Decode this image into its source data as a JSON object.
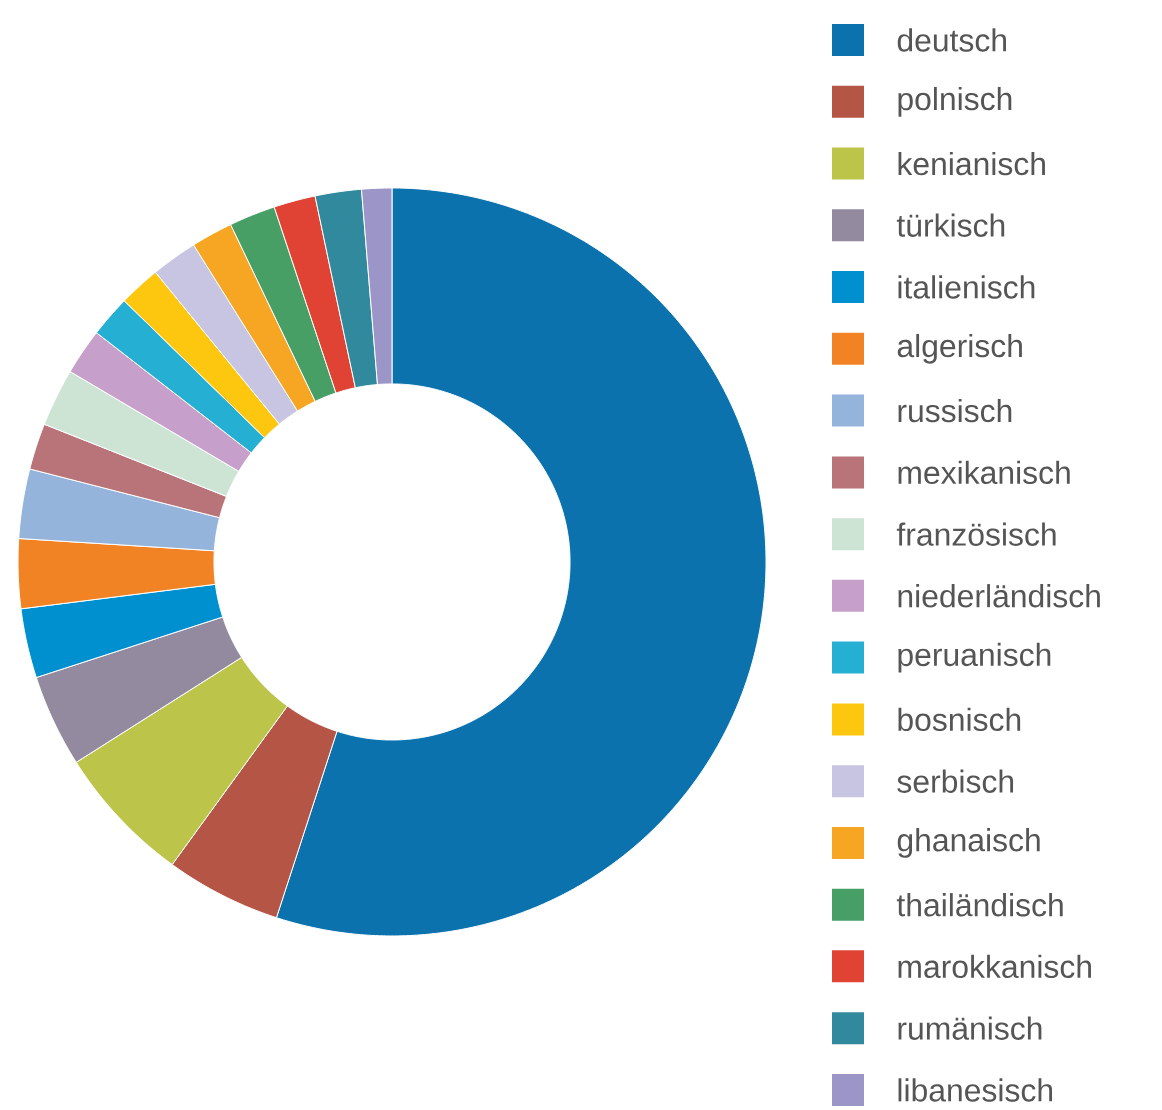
{
  "chart_data": {
    "type": "donut",
    "legend": "right",
    "categories": [
      "deutsch",
      "polnisch",
      "kenianisch",
      "türkisch",
      "italienisch",
      "algerisch",
      "russisch",
      "mexikanisch",
      "französisch",
      "niederländisch",
      "peruanisch",
      "bosnisch",
      "serbisch",
      "ghanaisch",
      "thailändisch",
      "marokkanisch",
      "rumänisch",
      "libanesisch"
    ],
    "values": [
      55,
      5,
      6,
      4,
      3,
      3,
      3,
      2,
      2.5,
      2,
      1.8,
      1.8,
      2,
      1.8,
      2,
      1.8,
      2,
      1.3
    ],
    "colors": [
      "#0b72ae",
      "#b55546",
      "#bdc44a",
      "#948aa0",
      "#0090cf",
      "#f28325",
      "#95b4dc",
      "#b87478",
      "#cde4d5",
      "#c6a0ca",
      "#25afd2",
      "#fcc70e",
      "#c8c5e2",
      "#f6a623",
      "#479f66",
      "#e04334",
      "#30899d",
      "#9b95c8"
    ]
  }
}
